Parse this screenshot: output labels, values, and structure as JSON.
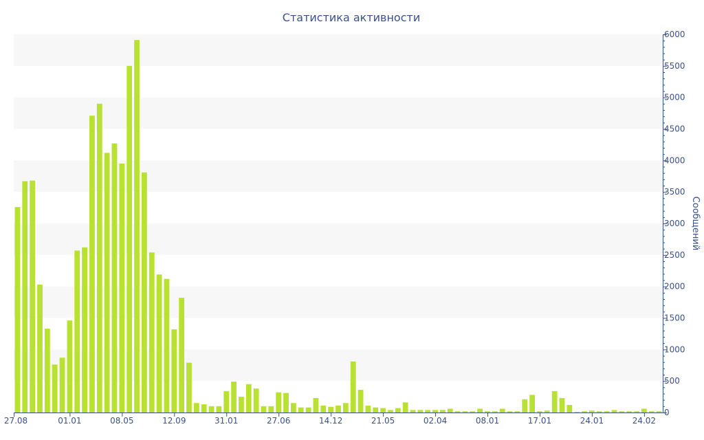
{
  "chart_data": {
    "type": "bar",
    "title": "Статистика активности",
    "ylabel": "Сообщений",
    "y_axis_position": "right",
    "ylim": [
      0,
      6000
    ],
    "yticks": [
      0,
      500,
      1000,
      1500,
      2000,
      2500,
      3000,
      3500,
      4000,
      4500,
      5000,
      5500,
      6000
    ],
    "x_tick_labels": [
      {
        "index": 0,
        "label": "27.08"
      },
      {
        "index": 7,
        "label": "01.01"
      },
      {
        "index": 14,
        "label": "08.05"
      },
      {
        "index": 21,
        "label": "12.09"
      },
      {
        "index": 28,
        "label": "31.01"
      },
      {
        "index": 35,
        "label": "27.06"
      },
      {
        "index": 42,
        "label": "14.12"
      },
      {
        "index": 49,
        "label": "21.05"
      },
      {
        "index": 56,
        "label": "02.04"
      },
      {
        "index": 63,
        "label": "08.01"
      },
      {
        "index": 70,
        "label": "17.01"
      },
      {
        "index": 77,
        "label": "24.01"
      },
      {
        "index": 84,
        "label": "24.02"
      }
    ],
    "values": [
      3260,
      3670,
      3680,
      2030,
      1330,
      760,
      870,
      1460,
      2570,
      2620,
      4710,
      4900,
      4120,
      4270,
      3950,
      5500,
      5910,
      3810,
      2540,
      2190,
      2120,
      1320,
      1820,
      790,
      150,
      130,
      100,
      100,
      340,
      490,
      250,
      450,
      380,
      100,
      100,
      320,
      310,
      150,
      80,
      80,
      230,
      110,
      90,
      110,
      150,
      810,
      360,
      110,
      80,
      70,
      40,
      70,
      160,
      40,
      40,
      40,
      40,
      40,
      60,
      20,
      20,
      20,
      60,
      20,
      20,
      60,
      20,
      20,
      210,
      280,
      20,
      30,
      340,
      230,
      120,
      10,
      20,
      30,
      20,
      20,
      40,
      20,
      20,
      20,
      60,
      20,
      20
    ],
    "colors": {
      "bar": "#b8e133",
      "band": "#f7f7f7",
      "axis": "#3a5186",
      "text": "#3a5186"
    },
    "grid": "alternating horizontal bands"
  }
}
